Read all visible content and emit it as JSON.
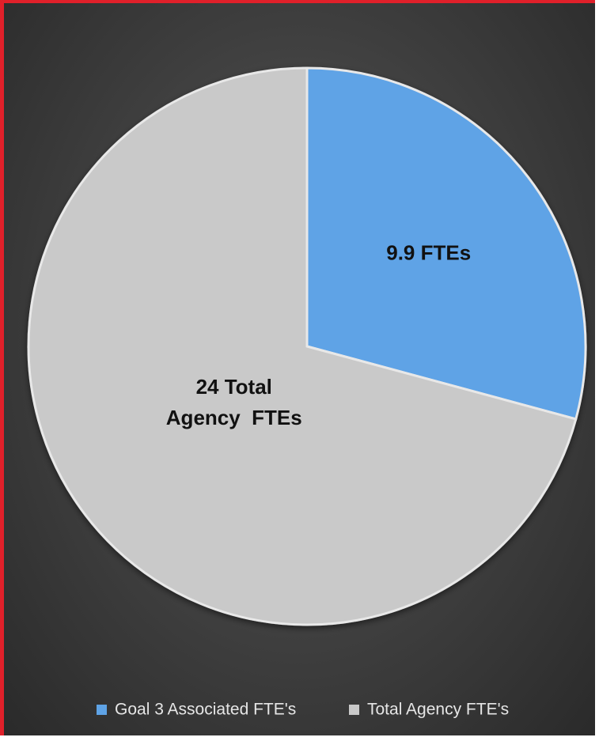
{
  "chart_data": {
    "type": "pie",
    "categories": [
      "Goal 3 Associated FTE's",
      "Total Agency FTE's"
    ],
    "values": [
      9.9,
      24
    ],
    "value_labels": [
      "9.9 FTEs",
      "24 Total\nAgency  FTEs"
    ],
    "colors": [
      "#5ea3e6",
      "#c9c9c9"
    ],
    "legend": "bottom"
  }
}
